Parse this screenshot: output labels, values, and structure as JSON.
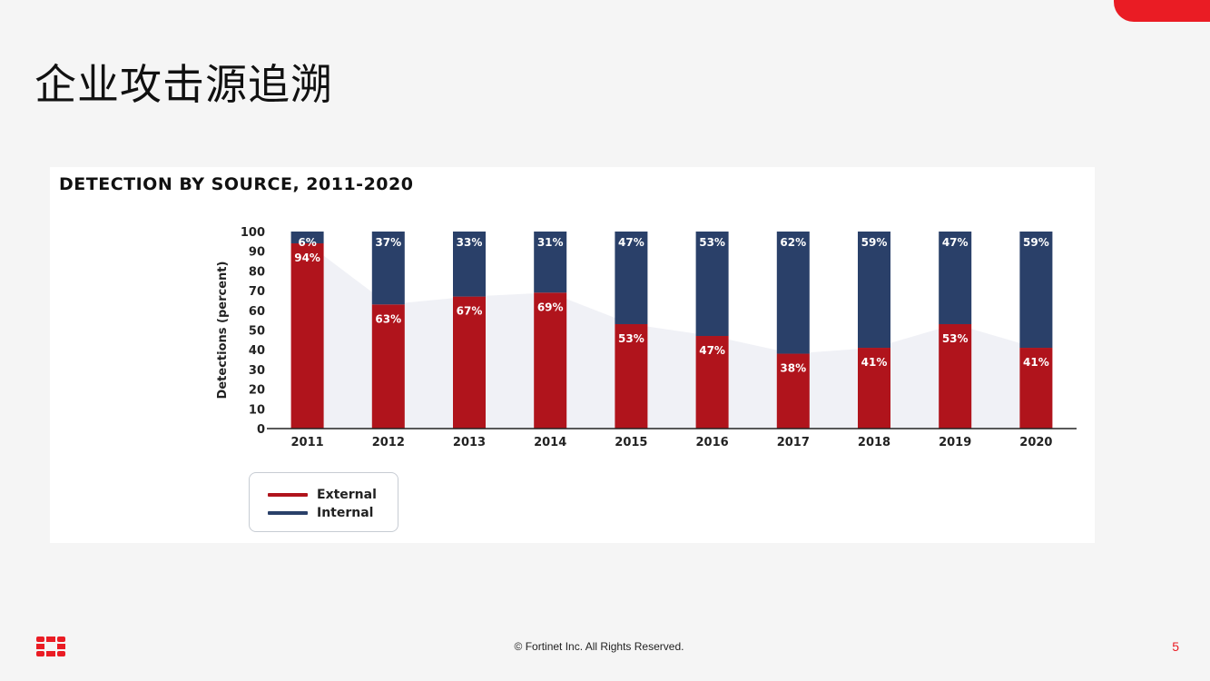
{
  "slide": {
    "title": "企业攻击源追溯",
    "footer": "© Fortinet Inc. All Rights Reserved.",
    "page_number": "5",
    "logo_icon": "fortinet-logo-icon",
    "accent_color": "#ea1c24"
  },
  "chart_data": {
    "type": "bar",
    "stacked": true,
    "title": "DETECTION BY SOURCE, 2011-2020",
    "xlabel": "",
    "ylabel": "Detections (percent)",
    "ylim": [
      0,
      100
    ],
    "yticks": [
      "0",
      "10",
      "20",
      "30",
      "40",
      "50",
      "60",
      "70",
      "80",
      "90",
      "100"
    ],
    "categories": [
      "2011",
      "2012",
      "2013",
      "2014",
      "2015",
      "2016",
      "2017",
      "2018",
      "2019",
      "2020"
    ],
    "series": [
      {
        "name": "External",
        "color": "#b0141c",
        "values": [
          94,
          63,
          67,
          69,
          53,
          47,
          38,
          41,
          53,
          41
        ],
        "labels": [
          "94%",
          "63%",
          "67%",
          "69%",
          "53%",
          "47%",
          "38%",
          "41%",
          "53%",
          "41%"
        ]
      },
      {
        "name": "Internal",
        "color": "#2a4069",
        "values": [
          6,
          37,
          33,
          31,
          47,
          53,
          62,
          59,
          47,
          59
        ],
        "labels": [
          "6%",
          "37%",
          "33%",
          "31%",
          "47%",
          "53%",
          "62%",
          "59%",
          "47%",
          "59%"
        ]
      }
    ],
    "legend_position": "bottom-left",
    "grid": false
  }
}
